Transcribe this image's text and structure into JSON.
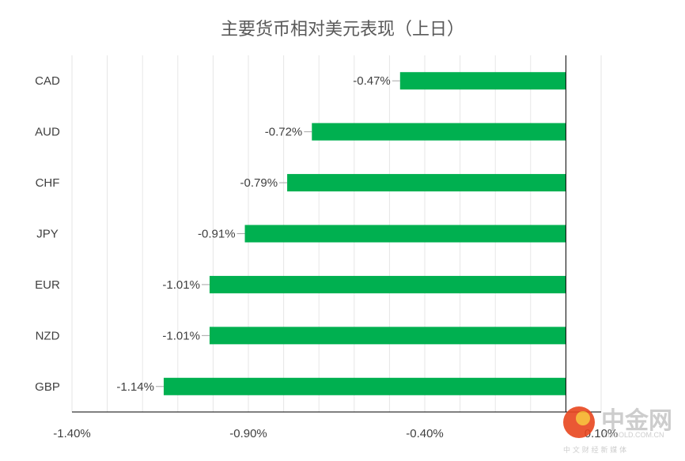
{
  "chart_data": {
    "type": "bar",
    "orientation": "horizontal",
    "title": "主要货币相对美元表现（上日）",
    "categories": [
      "CAD",
      "AUD",
      "CHF",
      "JPY",
      "EUR",
      "NZD",
      "GBP"
    ],
    "values": [
      -0.47,
      -0.72,
      -0.79,
      -0.91,
      -1.01,
      -1.01,
      -1.14
    ],
    "data_labels": [
      "-0.47%",
      "-0.72%",
      "-0.79%",
      "-0.91%",
      "-1.01%",
      "-1.01%",
      "-1.14%"
    ],
    "x_ticks": [
      -1.4,
      -0.9,
      -0.4,
      0.1
    ],
    "x_tick_labels": [
      "-1.40%",
      "-0.90%",
      "-0.40%",
      "0.10%"
    ],
    "xlim": [
      -1.4,
      0.1
    ],
    "xlabel": "",
    "ylabel": "",
    "grid": "vertical",
    "legend": "none",
    "bar_color": "#00b050"
  },
  "watermark": {
    "brand": "中金网",
    "url": "CNGOLD.COM.CN",
    "tagline": "中 文 财 经 新 媒 体",
    "accent_color": "#e8461f"
  }
}
